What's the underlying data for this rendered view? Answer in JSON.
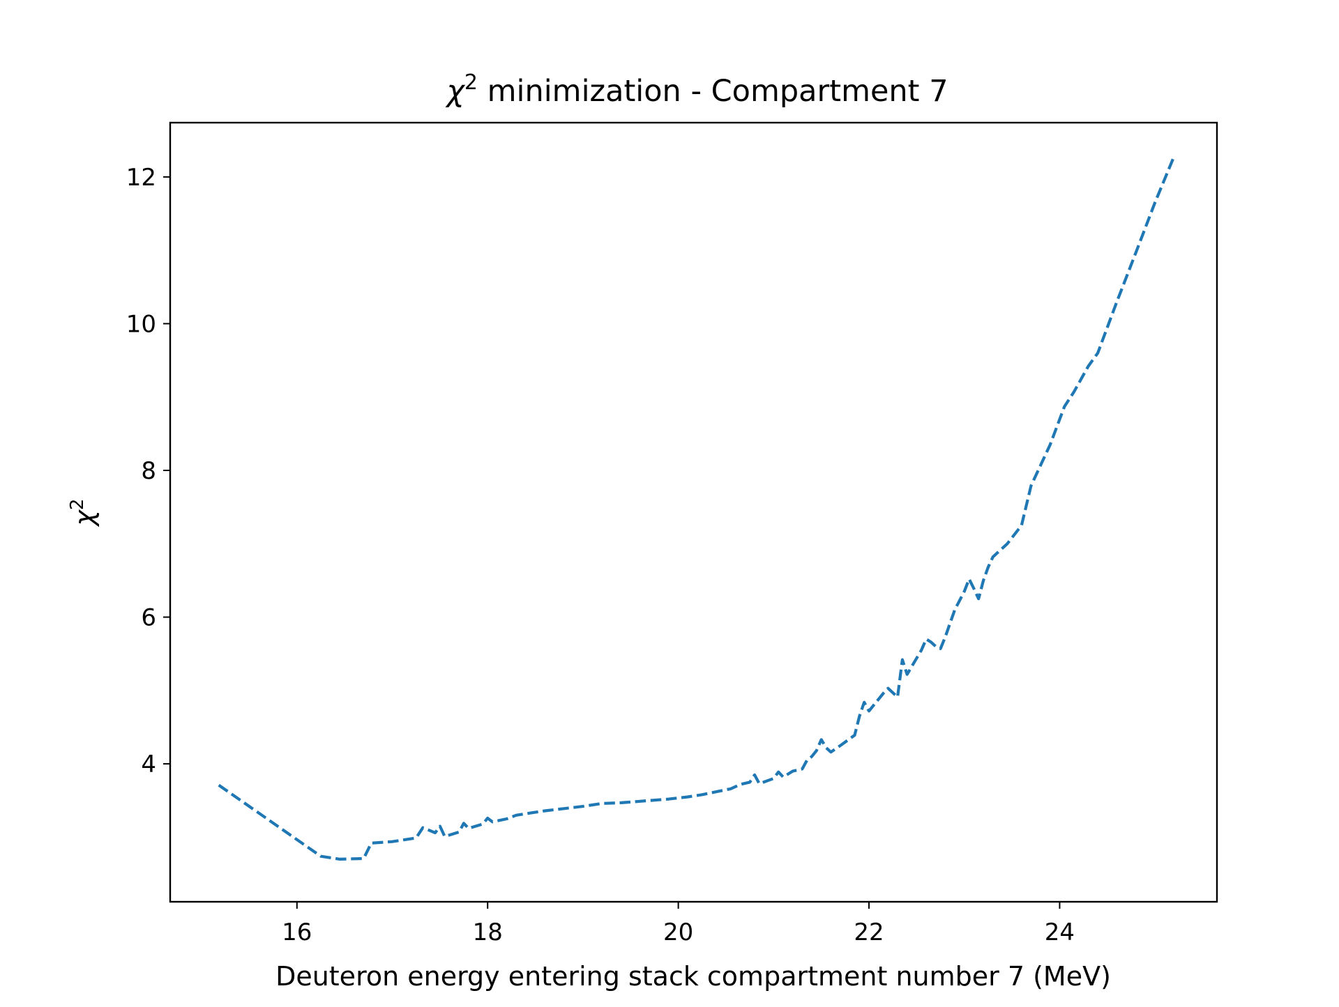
{
  "chart_data": {
    "type": "line",
    "title": {
      "prefix": "χ",
      "sup": "2",
      "suffix": " minimization - Compartment 7"
    },
    "xlabel": "Deuteron energy entering stack compartment number 7 (MeV)",
    "ylabel": {
      "base": "χ",
      "sup": "2"
    },
    "xlim": [
      14.67,
      25.65
    ],
    "ylim": [
      2.12,
      12.74
    ],
    "xticks": [
      16,
      18,
      20,
      22,
      24
    ],
    "yticks": [
      4,
      6,
      8,
      10,
      12
    ],
    "xtick_labels": [
      "16",
      "18",
      "20",
      "22",
      "24"
    ],
    "ytick_labels": [
      "4",
      "6",
      "8",
      "10",
      "12"
    ],
    "grid": false,
    "legend": "none",
    "series": [
      {
        "color": "#1f77b4",
        "line_style": "dashed",
        "points": [
          [
            15.18,
            3.71
          ],
          [
            16.25,
            2.74
          ],
          [
            16.45,
            2.7
          ],
          [
            16.7,
            2.71
          ],
          [
            16.78,
            2.92
          ],
          [
            17.0,
            2.94
          ],
          [
            17.25,
            2.99
          ],
          [
            17.32,
            3.13
          ],
          [
            17.45,
            3.06
          ],
          [
            17.5,
            3.15
          ],
          [
            17.55,
            3.01
          ],
          [
            17.7,
            3.07
          ],
          [
            17.75,
            3.19
          ],
          [
            17.8,
            3.12
          ],
          [
            17.95,
            3.18
          ],
          [
            18.0,
            3.26
          ],
          [
            18.05,
            3.21
          ],
          [
            18.2,
            3.25
          ],
          [
            18.3,
            3.3
          ],
          [
            18.45,
            3.33
          ],
          [
            18.6,
            3.36
          ],
          [
            18.8,
            3.39
          ],
          [
            19.0,
            3.42
          ],
          [
            19.1,
            3.44
          ],
          [
            19.2,
            3.46
          ],
          [
            19.4,
            3.47
          ],
          [
            19.6,
            3.49
          ],
          [
            19.7,
            3.5
          ],
          [
            19.9,
            3.52
          ],
          [
            20.1,
            3.55
          ],
          [
            20.25,
            3.58
          ],
          [
            20.4,
            3.62
          ],
          [
            20.55,
            3.66
          ],
          [
            20.65,
            3.72
          ],
          [
            20.75,
            3.75
          ],
          [
            20.8,
            3.85
          ],
          [
            20.85,
            3.73
          ],
          [
            21.0,
            3.8
          ],
          [
            21.05,
            3.89
          ],
          [
            21.1,
            3.82
          ],
          [
            21.2,
            3.9
          ],
          [
            21.3,
            3.93
          ],
          [
            21.35,
            4.05
          ],
          [
            21.4,
            4.1
          ],
          [
            21.45,
            4.18
          ],
          [
            21.5,
            4.33
          ],
          [
            21.55,
            4.22
          ],
          [
            21.6,
            4.16
          ],
          [
            21.7,
            4.25
          ],
          [
            21.85,
            4.39
          ],
          [
            21.9,
            4.65
          ],
          [
            21.95,
            4.84
          ],
          [
            22.0,
            4.72
          ],
          [
            22.15,
            4.96
          ],
          [
            22.2,
            5.03
          ],
          [
            22.3,
            4.91
          ],
          [
            22.35,
            5.42
          ],
          [
            22.4,
            5.22
          ],
          [
            22.55,
            5.55
          ],
          [
            22.6,
            5.7
          ],
          [
            22.65,
            5.66
          ],
          [
            22.7,
            5.6
          ],
          [
            22.75,
            5.57
          ],
          [
            22.8,
            5.73
          ],
          [
            22.9,
            6.1
          ],
          [
            23.0,
            6.35
          ],
          [
            23.05,
            6.52
          ],
          [
            23.1,
            6.39
          ],
          [
            23.15,
            6.25
          ],
          [
            23.2,
            6.5
          ],
          [
            23.25,
            6.68
          ],
          [
            23.3,
            6.82
          ],
          [
            23.45,
            7.0
          ],
          [
            23.6,
            7.25
          ],
          [
            23.7,
            7.79
          ],
          [
            23.9,
            8.35
          ],
          [
            24.05,
            8.87
          ],
          [
            24.15,
            9.07
          ],
          [
            24.3,
            9.42
          ],
          [
            24.4,
            9.6
          ],
          [
            24.6,
            10.3
          ],
          [
            24.8,
            10.97
          ],
          [
            25.0,
            11.65
          ],
          [
            25.2,
            12.28
          ]
        ]
      }
    ]
  }
}
